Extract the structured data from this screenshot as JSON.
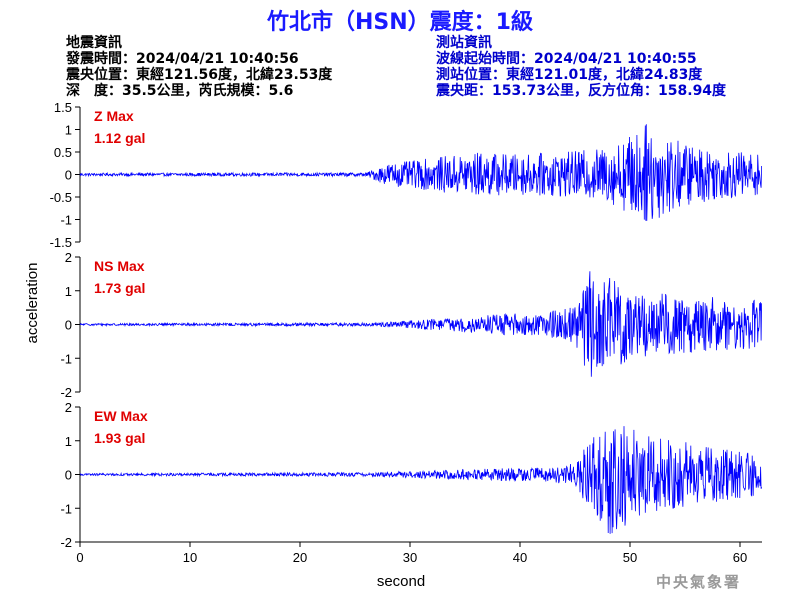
{
  "title": "竹北市（HSN）震度：1級",
  "quake_info": {
    "heading": "地震資訊",
    "origin_time": "發震時間：2024/04/21 10:40:56",
    "epicenter": "震央位置：東經121.56度，北緯23.53度",
    "depth_magnitude": "深　度：35.5公里，芮氏規模：5.6"
  },
  "station_info": {
    "heading": "測站資訊",
    "wave_start": "波線起始時間：2024/04/21 10:40:55",
    "location": "測站位置：東經121.01度，北緯24.83度",
    "distance": "震央距：153.73公里，反方位角：158.94度"
  },
  "footer": "中央氣象署",
  "colors": {
    "trace": "#0000ff",
    "max_label": "#e00000",
    "title": "#1a1aff"
  },
  "chart_data": {
    "type": "line",
    "xlabel": "second",
    "ylabel": "acceleration",
    "xlim": [
      0,
      62
    ],
    "xticks": [
      "0",
      "10",
      "20",
      "30",
      "40",
      "50",
      "60"
    ],
    "panels": [
      {
        "component": "Z",
        "max_label": "Z Max",
        "max_value": "1.12 gal",
        "ylim": [
          -1.5,
          1.5
        ],
        "yticks": [
          "1.5",
          "1",
          "0.5",
          "0",
          "-0.5",
          "-1",
          "-1.5"
        ],
        "envelope": [
          [
            0,
            0.03
          ],
          [
            26,
            0.04
          ],
          [
            27,
            0.15
          ],
          [
            28,
            0.25
          ],
          [
            30,
            0.3
          ],
          [
            33,
            0.4
          ],
          [
            36,
            0.5
          ],
          [
            40,
            0.45
          ],
          [
            44,
            0.5
          ],
          [
            48,
            0.6
          ],
          [
            51.5,
            1.12
          ],
          [
            55,
            0.7
          ],
          [
            58,
            0.55
          ],
          [
            62,
            0.45
          ]
        ]
      },
      {
        "component": "NS",
        "max_label": "NS Max",
        "max_value": "1.73 gal",
        "ylim": [
          -2,
          2
        ],
        "yticks": [
          "2",
          "1",
          "0",
          "-1",
          "-2"
        ],
        "envelope": [
          [
            0,
            0.03
          ],
          [
            27,
            0.05
          ],
          [
            30,
            0.12
          ],
          [
            34,
            0.2
          ],
          [
            38,
            0.3
          ],
          [
            42,
            0.35
          ],
          [
            45,
            0.55
          ],
          [
            46.5,
            1.73
          ],
          [
            48,
            1.4
          ],
          [
            51,
            1.0
          ],
          [
            54,
            0.9
          ],
          [
            58,
            0.8
          ],
          [
            62,
            0.7
          ]
        ]
      },
      {
        "component": "EW",
        "max_label": "EW Max",
        "max_value": "1.93 gal",
        "ylim": [
          -2,
          2
        ],
        "yticks": [
          "2",
          "1",
          "0",
          "-1",
          "-2"
        ],
        "envelope": [
          [
            0,
            0.03
          ],
          [
            27,
            0.06
          ],
          [
            32,
            0.12
          ],
          [
            38,
            0.18
          ],
          [
            42,
            0.2
          ],
          [
            45,
            0.35
          ],
          [
            46.5,
            1.1
          ],
          [
            48,
            1.93
          ],
          [
            50,
            1.4
          ],
          [
            53,
            1.1
          ],
          [
            57,
            0.85
          ],
          [
            62,
            0.6
          ]
        ]
      }
    ]
  }
}
